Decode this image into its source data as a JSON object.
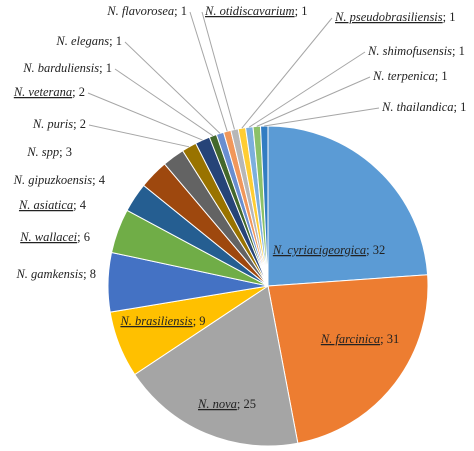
{
  "chart_data": {
    "type": "pie",
    "categories": [
      "N. cyriacigeorgica",
      "N. farcinica",
      "N. nova",
      "N. brasiliensis",
      "N. gamkensis",
      "N. wallacei",
      "N. asiatica",
      "N. gipuzkoensis",
      "N. spp",
      "N. puris",
      "N. veterana",
      "N. barduliensis",
      "N. elegans",
      "N. flavorosea",
      "N. otidiscavarium",
      "N. pseudobrasiliensis",
      "N. shimofusensis",
      "N. terpenica",
      "N. thailandica"
    ],
    "values": [
      32,
      31,
      25,
      9,
      8,
      6,
      4,
      4,
      3,
      2,
      2,
      1,
      1,
      1,
      1,
      1,
      1,
      1,
      1
    ],
    "colors": [
      "#5b9bd5",
      "#ed7d31",
      "#a5a5a5",
      "#ffc000",
      "#4472c4",
      "#70ad47",
      "#255e91",
      "#9e480e",
      "#636363",
      "#997300",
      "#264478",
      "#43682b",
      "#698ed0",
      "#f1975a",
      "#b7b7b7",
      "#ffcd33",
      "#7cafdd",
      "#8cc168",
      "#327dc2"
    ],
    "underlined": [
      true,
      true,
      true,
      true,
      false,
      true,
      true,
      false,
      false,
      false,
      true,
      false,
      false,
      false,
      true,
      true,
      false,
      false,
      false
    ],
    "label_separator": "; "
  }
}
